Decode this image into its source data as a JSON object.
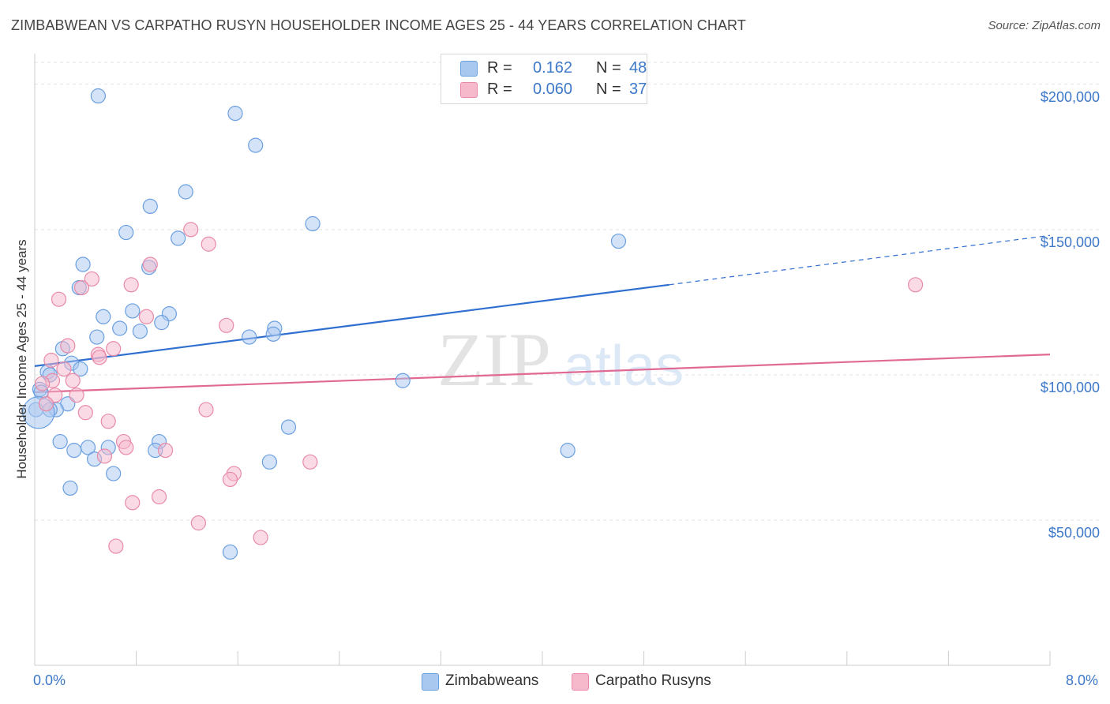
{
  "title": "ZIMBABWEAN VS CARPATHO RUSYN HOUSEHOLDER INCOME AGES 25 - 44 YEARS CORRELATION CHART",
  "source": "Source: ZipAtlas.com",
  "watermark": {
    "zip": "ZIP",
    "atlas": "atlas"
  },
  "legend_stats": [
    {
      "r_label": "R =",
      "r_value": "0.162",
      "n_label": "N =",
      "n_value": "48",
      "color": "#a9c8f0"
    },
    {
      "r_label": "R =",
      "r_value": "0.060",
      "n_label": "N =",
      "n_value": "37",
      "color": "#f6b8cb"
    }
  ],
  "legend_series": [
    {
      "label": "Zimbabweans",
      "color": "#a9c8f0"
    },
    {
      "label": "Carpatho Rusyns",
      "color": "#f6b8cb"
    }
  ],
  "colors": {
    "zim_fill": "#a9c8f0",
    "zim_stroke": "#6a9fe0",
    "zim_line": "#2f6fd0",
    "car_fill": "#f6b8cb",
    "car_stroke": "#e88aa8",
    "car_line": "#e06a94",
    "axis_text": "#3d78c9",
    "grid": "#e4e4e4"
  },
  "chart_data": {
    "type": "scatter",
    "title": "ZIMBABWEAN VS CARPATHO RUSYN HOUSEHOLDER INCOME AGES 25 - 44 YEARS CORRELATION CHART",
    "xlabel": "",
    "ylabel": "Householder Income Ages 25 - 44 years",
    "xlim": [
      0,
      8
    ],
    "ylim": [
      0,
      210000
    ],
    "x_tick_labels": [
      "0.0%",
      "8.0%"
    ],
    "y_ticks": [
      {
        "value": 50000,
        "label": "$50,000"
      },
      {
        "value": 100000,
        "label": "$100,000"
      },
      {
        "value": 150000,
        "label": "$150,000"
      },
      {
        "value": 200000,
        "label": "$200,000"
      }
    ],
    "grid": true,
    "series": [
      {
        "name": "Zimbabweans",
        "points": [
          [
            0.5,
            196000
          ],
          [
            1.58,
            190000
          ],
          [
            1.74,
            179000
          ],
          [
            1.19,
            163000
          ],
          [
            0.91,
            158000
          ],
          [
            2.19,
            152000
          ],
          [
            0.72,
            149000
          ],
          [
            1.13,
            147000
          ],
          [
            4.6,
            146000
          ],
          [
            0.38,
            138000
          ],
          [
            0.9,
            137000
          ],
          [
            0.35,
            130000
          ],
          [
            0.77,
            122000
          ],
          [
            1.06,
            121000
          ],
          [
            0.54,
            120000
          ],
          [
            1.0,
            118000
          ],
          [
            0.67,
            116000
          ],
          [
            0.83,
            115000
          ],
          [
            1.89,
            116000
          ],
          [
            1.88,
            114000
          ],
          [
            1.69,
            113000
          ],
          [
            0.49,
            113000
          ],
          [
            0.22,
            109000
          ],
          [
            0.29,
            104000
          ],
          [
            0.36,
            102000
          ],
          [
            0.1,
            101000
          ],
          [
            0.12,
            100000
          ],
          [
            2.9,
            98000
          ],
          [
            0.04,
            95000
          ],
          [
            0.05,
            94000
          ],
          [
            0.26,
            90000
          ],
          [
            0.17,
            88000
          ],
          [
            0.12,
            88000
          ],
          [
            2.0,
            82000
          ],
          [
            0.01,
            88000
          ],
          [
            0.2,
            77000
          ],
          [
            0.98,
            77000
          ],
          [
            0.58,
            75000
          ],
          [
            0.42,
            75000
          ],
          [
            0.31,
            74000
          ],
          [
            0.95,
            74000
          ],
          [
            4.2,
            74000
          ],
          [
            0.47,
            71000
          ],
          [
            1.85,
            70000
          ],
          [
            0.62,
            66000
          ],
          [
            0.28,
            61000
          ],
          [
            1.54,
            39000
          ],
          [
            0.03,
            87000
          ]
        ],
        "trend": {
          "x": [
            0,
            5.0
          ],
          "y": [
            103000,
            131000
          ],
          "dashed_to": [
            8.0,
            148000
          ]
        }
      },
      {
        "name": "Carpatho Rusyns",
        "points": [
          [
            1.23,
            150000
          ],
          [
            1.37,
            145000
          ],
          [
            0.91,
            138000
          ],
          [
            0.45,
            133000
          ],
          [
            0.76,
            131000
          ],
          [
            0.37,
            130000
          ],
          [
            0.19,
            126000
          ],
          [
            0.88,
            120000
          ],
          [
            1.51,
            117000
          ],
          [
            0.26,
            110000
          ],
          [
            0.62,
            109000
          ],
          [
            0.5,
            107000
          ],
          [
            0.51,
            106000
          ],
          [
            0.13,
            105000
          ],
          [
            0.23,
            102000
          ],
          [
            0.14,
            98000
          ],
          [
            0.3,
            98000
          ],
          [
            0.06,
            97000
          ],
          [
            0.33,
            93000
          ],
          [
            0.16,
            93000
          ],
          [
            0.09,
            90000
          ],
          [
            1.35,
            88000
          ],
          [
            0.4,
            87000
          ],
          [
            6.94,
            131000
          ],
          [
            0.58,
            84000
          ],
          [
            0.7,
            77000
          ],
          [
            0.72,
            75000
          ],
          [
            1.03,
            74000
          ],
          [
            0.55,
            72000
          ],
          [
            2.17,
            70000
          ],
          [
            1.57,
            66000
          ],
          [
            1.54,
            64000
          ],
          [
            0.98,
            58000
          ],
          [
            0.77,
            56000
          ],
          [
            1.29,
            49000
          ],
          [
            1.78,
            44000
          ],
          [
            0.64,
            41000
          ]
        ],
        "trend": {
          "x": [
            0,
            8.0
          ],
          "y": [
            94000,
            107000
          ]
        }
      }
    ]
  }
}
